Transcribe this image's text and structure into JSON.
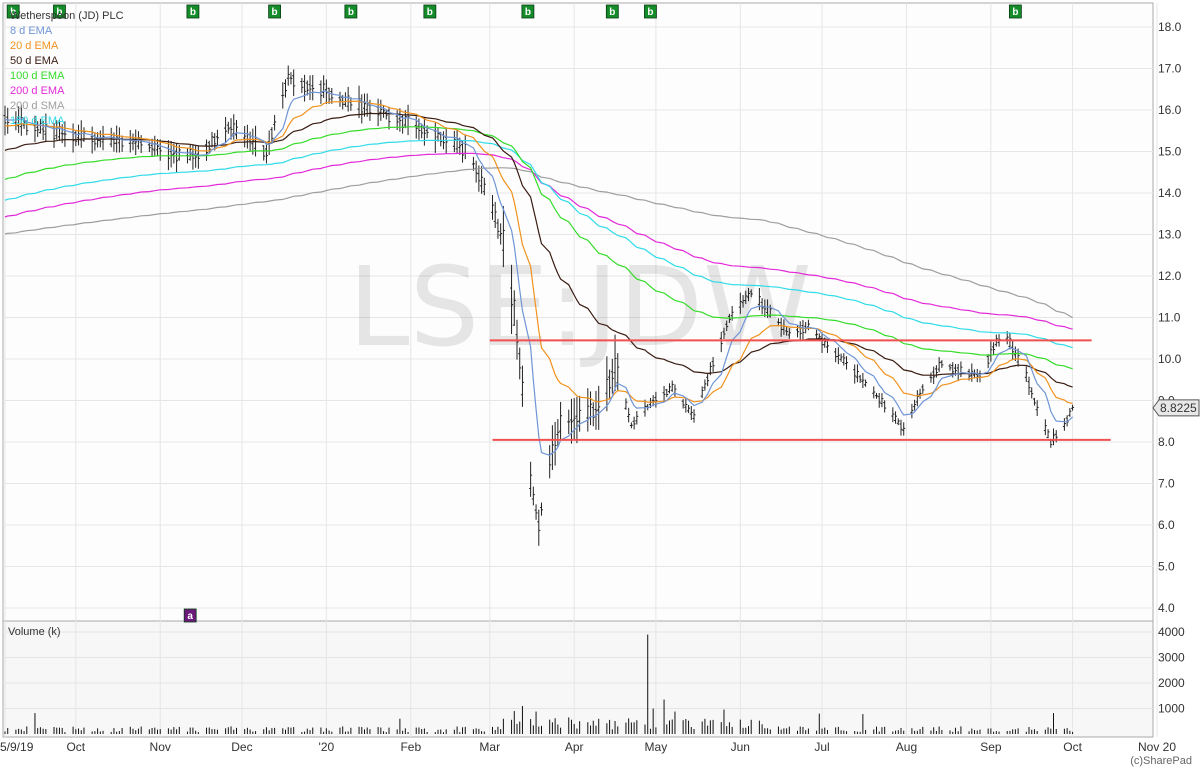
{
  "chart_data": {
    "type": "candlestick",
    "title": "Wetherspoon (JD) PLC",
    "watermark": "LSE:JDW",
    "last_price_label": "8.8225",
    "copyright": "(c)SharePad",
    "volume_panel_title": "Volume (k)",
    "price_axis": {
      "range": [
        3.6,
        18.5
      ],
      "ticks": [
        "4.0",
        "5.0",
        "6.0",
        "7.0",
        "8.0",
        "9.0",
        "10.0",
        "11.0",
        "12.0",
        "13.0",
        "14.0",
        "15.0",
        "16.0",
        "17.0",
        "18.0"
      ]
    },
    "volume_axis": {
      "range": [
        0,
        4500
      ],
      "ticks": [
        "1000",
        "2000",
        "3000",
        "4000"
      ]
    },
    "x_axis": {
      "ticks": [
        {
          "label": "5/9/19",
          "date": "2019-09-05"
        },
        {
          "label": "Oct",
          "date": "2019-10-01"
        },
        {
          "label": "Nov",
          "date": "2019-11-01"
        },
        {
          "label": "Dec",
          "date": "2019-12-01"
        },
        {
          "label": "'20",
          "date": "2020-01-01"
        },
        {
          "label": "Feb",
          "date": "2020-02-01"
        },
        {
          "label": "Mar",
          "date": "2020-03-01"
        },
        {
          "label": "Apr",
          "date": "2020-04-01"
        },
        {
          "label": "May",
          "date": "2020-05-01"
        },
        {
          "label": "Jun",
          "date": "2020-06-01"
        },
        {
          "label": "Jul",
          "date": "2020-07-01"
        },
        {
          "label": "Aug",
          "date": "2020-08-01"
        },
        {
          "label": "Sep",
          "date": "2020-09-01"
        },
        {
          "label": "Oct",
          "date": "2020-10-01"
        },
        {
          "label": "Nov 20",
          "date": "2020-11-01"
        }
      ]
    },
    "legend": [
      {
        "label": "8 d EMA",
        "color": "#6f95d6"
      },
      {
        "label": "20 d EMA",
        "color": "#f0921e"
      },
      {
        "label": "50 d EMA",
        "color": "#3a1c12"
      },
      {
        "label": "100 d EMA",
        "color": "#35dc2a"
      },
      {
        "label": "200 d EMA",
        "color": "#e32ad9"
      },
      {
        "label": "200 d SMA",
        "color": "#9e9e9e"
      },
      {
        "label": "150 d EMA",
        "color": "#2fdbe8"
      }
    ],
    "title_color": "#333333",
    "horizontal_lines": [
      {
        "value": 10.45,
        "from": "2020-03-01",
        "to": "2020-10-08",
        "color": "#f05050"
      },
      {
        "value": 8.05,
        "from": "2020-03-02",
        "to": "2020-10-15",
        "color": "#f05050"
      }
    ],
    "badges": [
      {
        "text": "b",
        "date": "2019-09-08",
        "color": "#148c2a"
      },
      {
        "text": "b",
        "date": "2019-09-25",
        "color": "#148c2a"
      },
      {
        "text": "b",
        "date": "2019-11-13",
        "color": "#148c2a"
      },
      {
        "text": "b",
        "date": "2019-12-13",
        "color": "#148c2a"
      },
      {
        "text": "b",
        "date": "2020-01-10",
        "color": "#148c2a"
      },
      {
        "text": "b",
        "date": "2020-02-08",
        "color": "#148c2a"
      },
      {
        "text": "b",
        "date": "2020-03-15",
        "color": "#148c2a"
      },
      {
        "text": "b",
        "date": "2020-04-15",
        "color": "#148c2a"
      },
      {
        "text": "b",
        "date": "2020-04-29",
        "color": "#148c2a"
      },
      {
        "text": "b",
        "date": "2020-09-10",
        "color": "#148c2a"
      },
      {
        "text": "a",
        "date": "2019-11-12",
        "color": "#6a1a7a"
      }
    ],
    "price_anchors": [
      [
        "2019-09-05",
        15.8
      ],
      [
        "2019-09-20",
        15.5
      ],
      [
        "2019-10-08",
        15.3
      ],
      [
        "2019-10-25",
        15.2
      ],
      [
        "2019-11-08",
        14.9
      ],
      [
        "2019-11-15",
        14.9
      ],
      [
        "2019-11-26",
        15.6
      ],
      [
        "2019-12-10",
        15.0
      ],
      [
        "2019-12-18",
        16.8
      ],
      [
        "2019-12-24",
        16.6
      ],
      [
        "2019-12-31",
        16.5
      ],
      [
        "2020-01-08",
        16.2
      ],
      [
        "2020-01-20",
        16.0
      ],
      [
        "2020-02-03",
        15.6
      ],
      [
        "2020-02-14",
        15.3
      ],
      [
        "2020-02-22",
        15.0
      ],
      [
        "2020-03-01",
        13.8
      ],
      [
        "2020-03-07",
        12.6
      ],
      [
        "2020-03-12",
        10.0
      ],
      [
        "2020-03-16",
        7.0
      ],
      [
        "2020-03-19",
        6.0
      ],
      [
        "2020-03-23",
        7.6
      ],
      [
        "2020-03-27",
        8.4
      ],
      [
        "2020-04-03",
        8.6
      ],
      [
        "2020-04-10",
        8.8
      ],
      [
        "2020-04-16",
        9.8
      ],
      [
        "2020-04-22",
        8.4
      ],
      [
        "2020-04-30",
        9.0
      ],
      [
        "2020-05-07",
        9.3
      ],
      [
        "2020-05-15",
        8.6
      ],
      [
        "2020-05-22",
        9.9
      ],
      [
        "2020-05-28",
        11.0
      ],
      [
        "2020-06-05",
        11.6
      ],
      [
        "2020-06-12",
        11.1
      ],
      [
        "2020-06-19",
        10.6
      ],
      [
        "2020-06-26",
        10.8
      ],
      [
        "2020-07-03",
        10.3
      ],
      [
        "2020-07-10",
        9.9
      ],
      [
        "2020-07-17",
        9.4
      ],
      [
        "2020-07-24",
        8.9
      ],
      [
        "2020-07-31",
        8.3
      ],
      [
        "2020-08-07",
        9.3
      ],
      [
        "2020-08-14",
        9.9
      ],
      [
        "2020-08-21",
        9.7
      ],
      [
        "2020-08-28",
        9.6
      ],
      [
        "2020-09-03",
        10.4
      ],
      [
        "2020-09-07",
        10.5
      ],
      [
        "2020-09-14",
        9.6
      ],
      [
        "2020-09-18",
        8.8
      ],
      [
        "2020-09-23",
        8.0
      ],
      [
        "2020-09-28",
        8.4
      ],
      [
        "2020-10-01",
        8.82
      ]
    ],
    "volume_spikes": [
      [
        "2019-09-16",
        820
      ],
      [
        "2020-01-28",
        600
      ],
      [
        "2020-03-10",
        900
      ],
      [
        "2020-03-13",
        1100
      ],
      [
        "2020-03-18",
        880
      ],
      [
        "2020-04-28",
        3900
      ],
      [
        "2020-04-30",
        1000
      ],
      [
        "2020-05-04",
        1350
      ],
      [
        "2020-05-08",
        880
      ],
      [
        "2020-05-26",
        960
      ],
      [
        "2020-06-30",
        800
      ],
      [
        "2020-07-16",
        780
      ],
      [
        "2020-09-24",
        820
      ]
    ]
  }
}
